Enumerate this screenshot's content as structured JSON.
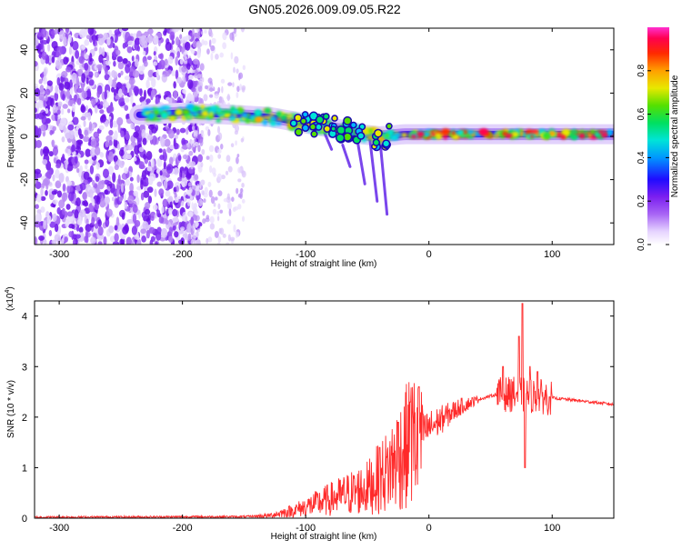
{
  "title": "GN05.2026.009.09.05.R22",
  "colors": {
    "snr_line": "#ff2a2a",
    "background": "#ffffff",
    "axis": "#000000"
  },
  "chart_data": [
    {
      "type": "heatmap",
      "xlabel": "Height of straight line (km)",
      "ylabel": "Frequency (Hz)",
      "xlim": [
        -320,
        150
      ],
      "ylim": [
        -50,
        50
      ],
      "x_ticks": [
        "-300",
        "-200",
        "-100",
        "0",
        "100"
      ],
      "y_ticks": [
        "40",
        "20",
        "0",
        "-20",
        "-40"
      ],
      "ridge": [
        [
          -230,
          10
        ],
        [
          -200,
          11
        ],
        [
          -160,
          10
        ],
        [
          -130,
          9
        ],
        [
          -110,
          7
        ],
        [
          -90,
          5
        ],
        [
          -70,
          3
        ],
        [
          -55,
          1
        ],
        [
          -40,
          0
        ],
        [
          -20,
          1
        ],
        [
          0,
          1
        ],
        [
          50,
          1
        ],
        [
          100,
          1
        ],
        [
          150,
          1
        ]
      ],
      "colorbar": {
        "label": "Normalized spectral amplitude",
        "ticks": [
          "0.0",
          "0.2",
          "0.4",
          "0.6",
          "0.8"
        ],
        "range": [
          0,
          1
        ]
      }
    },
    {
      "type": "line",
      "xlabel": "Height of straight line (km)",
      "ylabel": "SNR (10 * v/v)",
      "y_scale_label": "(x10",
      "y_scale_exp": "4",
      "y_scale_close": ")",
      "xlim": [
        -320,
        150
      ],
      "ylim": [
        0,
        4.3
      ],
      "x_ticks": [
        "-300",
        "-200",
        "-100",
        "0",
        "100"
      ],
      "y_ticks": [
        "0",
        "1",
        "2",
        "3",
        "4"
      ],
      "series": [
        {
          "name": "SNR",
          "envelope": [
            [
              -320,
              0.02
            ],
            [
              -150,
              0.03
            ],
            [
              -130,
              0.05
            ],
            [
              -110,
              0.15
            ],
            [
              -90,
              0.3
            ],
            [
              -70,
              0.45
            ],
            [
              -50,
              0.6
            ],
            [
              -35,
              0.9
            ],
            [
              -25,
              1.2
            ],
            [
              -15,
              1.5
            ],
            [
              -5,
              1.7
            ],
            [
              10,
              1.95
            ],
            [
              25,
              2.2
            ],
            [
              40,
              2.35
            ],
            [
              55,
              2.45
            ],
            [
              70,
              2.45
            ],
            [
              85,
              2.42
            ],
            [
              100,
              2.38
            ],
            [
              120,
              2.33
            ],
            [
              150,
              2.25
            ]
          ],
          "peaks": [
            [
              -40,
              1.4
            ],
            [
              -25,
              1.9
            ],
            [
              -15,
              2.3
            ],
            [
              -8,
              2.6
            ],
            [
              60,
              3.0
            ],
            [
              68,
              2.7
            ],
            [
              73,
              3.6
            ],
            [
              76,
              4.25
            ],
            [
              78,
              1.0
            ],
            [
              82,
              3.0
            ],
            [
              88,
              2.9
            ],
            [
              98,
              2.4
            ]
          ]
        }
      ]
    }
  ]
}
